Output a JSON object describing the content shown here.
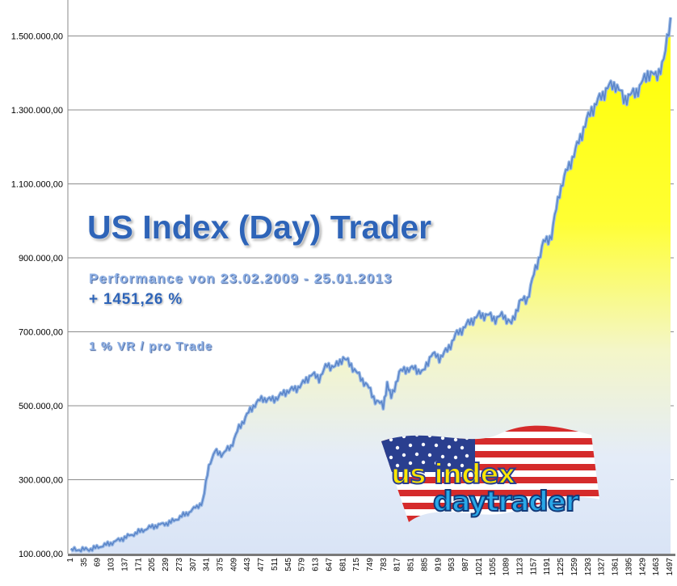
{
  "chart_data": {
    "type": "area",
    "title": "US Index (Day) Trader",
    "subtitle": "Performance  von  23.02.2009 - 25.01.2013",
    "annotations": [
      "+ 1451,26 %",
      "1 % VR / pro Trade"
    ],
    "xlabel": "",
    "ylabel": "",
    "ylim": [
      100000,
      1560000
    ],
    "y_ticks": [
      "100.000,00",
      "300.000,00",
      "500.000,00",
      "700.000,00",
      "900.000,00",
      "1.100.000,00",
      "1.300.000,00",
      "1.500.000,00"
    ],
    "y_tick_values": [
      100000,
      300000,
      500000,
      700000,
      900000,
      1100000,
      1300000,
      1500000
    ],
    "x_ticks": [
      "1",
      "35",
      "69",
      "103",
      "137",
      "171",
      "205",
      "239",
      "273",
      "307",
      "341",
      "375",
      "409",
      "443",
      "477",
      "511",
      "545",
      "579",
      "613",
      "647",
      "681",
      "715",
      "749",
      "783",
      "817",
      "851",
      "885",
      "919",
      "953",
      "987",
      "1021",
      "1055",
      "1089",
      "1123",
      "1157",
      "1191",
      "1225",
      "1259",
      "1293",
      "1327",
      "1361",
      "1395",
      "1429",
      "1463",
      "1497"
    ],
    "grid": true,
    "legend": "none",
    "colors": {
      "line": "#5b86c9",
      "fill_top": "#ffff00",
      "fill_bottom": "#dfe8f8",
      "grid": "#8c8c8c"
    },
    "series": [
      {
        "x": [
          1,
          50,
          100,
          150,
          200,
          250,
          300,
          330,
          345,
          360,
          380,
          400,
          420,
          440,
          460,
          480,
          500,
          520,
          540,
          560,
          580,
          600,
          620,
          640,
          660,
          680,
          700,
          720,
          740,
          760,
          780,
          790,
          800,
          820,
          840,
          860,
          880,
          900,
          920,
          940,
          960,
          980,
          1000,
          1020,
          1040,
          1060,
          1080,
          1100,
          1120,
          1140,
          1160,
          1180,
          1200,
          1220,
          1240,
          1260,
          1280,
          1300,
          1320,
          1340,
          1360,
          1380,
          1400,
          1420,
          1440,
          1460,
          1480,
          1497
        ],
        "values": [
          110000,
          112000,
          128000,
          150000,
          172000,
          185000,
          215000,
          240000,
          340000,
          375000,
          370000,
          390000,
          440000,
          475000,
          505000,
          520000,
          515000,
          525000,
          540000,
          545000,
          560000,
          585000,
          575000,
          610000,
          605000,
          630000,
          610000,
          580000,
          555000,
          515000,
          500000,
          560000,
          520000,
          590000,
          600000,
          600000,
          590000,
          640000,
          630000,
          650000,
          690000,
          710000,
          730000,
          745000,
          745000,
          735000,
          745000,
          720000,
          780000,
          790000,
          870000,
          940000,
          960000,
          1080000,
          1140000,
          1190000,
          1250000,
          1300000,
          1330000,
          1360000,
          1370000,
          1330000,
          1340000,
          1360000,
          1400000,
          1390000,
          1430000,
          1550000
        ]
      }
    ]
  }
}
